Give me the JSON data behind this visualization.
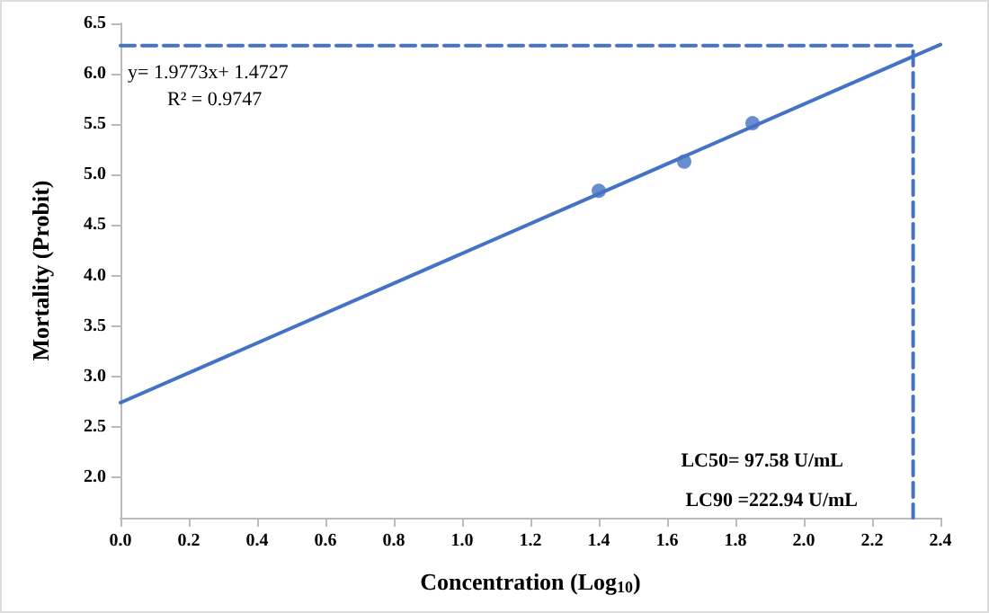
{
  "chart_data": {
    "type": "scatter",
    "xlabel": "Concentration (Log$_{10}$)",
    "ylabel": "Mortality (Probit)",
    "xlim": [
      0,
      2.4
    ],
    "ylim": [
      1.6,
      6.5
    ],
    "xticks": [
      {
        "value": 0,
        "label": "0.0"
      },
      {
        "value": 0.2,
        "label": "0.2"
      },
      {
        "value": 0.4,
        "label": "0.4"
      },
      {
        "value": 0.6,
        "label": "0.6"
      },
      {
        "value": 0.8,
        "label": "0.8"
      },
      {
        "value": 1,
        "label": "1.0"
      },
      {
        "value": 1.2,
        "label": "1.2"
      },
      {
        "value": 1.4,
        "label": "1.4"
      },
      {
        "value": 1.6,
        "label": "1.6"
      },
      {
        "value": 1.8,
        "label": "1.8"
      },
      {
        "value": 2,
        "label": "2.0"
      },
      {
        "value": 2.2,
        "label": "2.2"
      },
      {
        "value": 2.4,
        "label": "2.4"
      }
    ],
    "yticks": [
      {
        "value": 2,
        "label": "2.0"
      },
      {
        "value": 2.5,
        "label": "2.5"
      },
      {
        "value": 3,
        "label": "3.0"
      },
      {
        "value": 3.5,
        "label": "3.5"
      },
      {
        "value": 4,
        "label": "4.0"
      },
      {
        "value": 4.5,
        "label": "4.5"
      },
      {
        "value": 5,
        "label": "5.0"
      },
      {
        "value": 5.5,
        "label": "5.5"
      },
      {
        "value": 6,
        "label": "6.0"
      },
      {
        "value": 6.5,
        "label": "6.5"
      }
    ],
    "grid": false,
    "marker": "circle",
    "series": [
      {
        "color": "#4472c4",
        "x": [
          1.4,
          1.65,
          1.85
        ],
        "values": [
          4.84,
          5.13,
          5.51
        ]
      },
      {
        "type": "line",
        "color": "#4472c4",
        "marker": "none",
        "x": [
          0,
          2.4
        ],
        "values": [
          2.74,
          6.29
        ]
      },
      {
        "type": "line",
        "color": "#4472c4",
        "marker": "none",
        "line_style": "dashed",
        "x": [
          0,
          2.32,
          2.32
        ],
        "values": [
          6.28,
          6.28,
          1.6
        ]
      }
    ],
    "annotations": [
      "y= 1.9773x+ 1.4727",
      "R² = 0.9747",
      "LC50= 97.58 U/mL",
      "LC90 =222.94 U/mL"
    ]
  }
}
